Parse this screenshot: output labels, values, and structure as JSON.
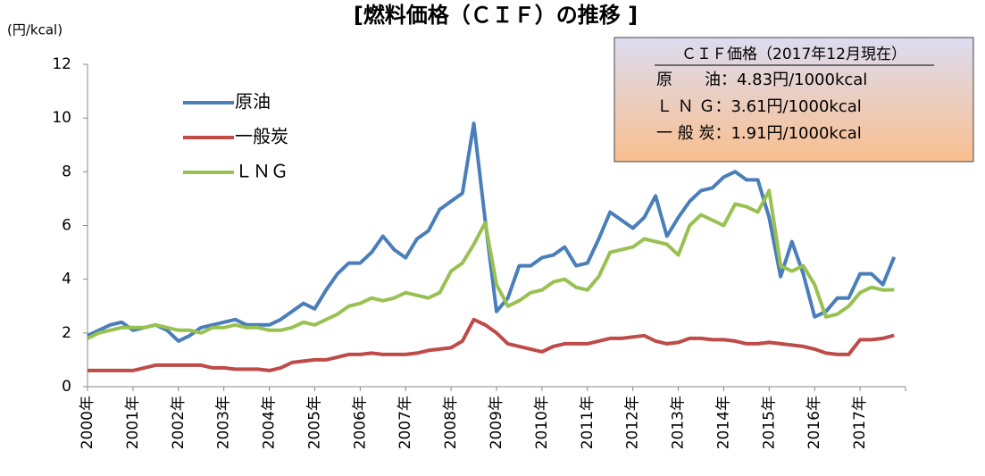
{
  "chart_data": {
    "type": "line",
    "title": "[燃料価格（ＣＩＦ）の推移 ]",
    "y_label": "(円/kcal)",
    "annotations": [
      "ＣＩＦ価格（2017年12月現在）",
      "原　　油：4.83円/1000kcal",
      "Ｌ Ｎ Ｇ：3.61円/1000kcal",
      "一 般 炭：1.91円/1000kcal"
    ],
    "categories": [
      "2000年",
      null,
      null,
      null,
      "2001年",
      null,
      null,
      null,
      "2002年",
      null,
      null,
      null,
      "2003年",
      null,
      null,
      null,
      "2004年",
      null,
      null,
      null,
      "2005年",
      null,
      null,
      null,
      "2006年",
      null,
      null,
      null,
      "2007年",
      null,
      null,
      null,
      "2008年",
      null,
      null,
      null,
      "2009年",
      null,
      null,
      null,
      "2010年",
      null,
      null,
      null,
      "2011年",
      null,
      null,
      null,
      "2012年",
      null,
      null,
      null,
      "2013年",
      null,
      null,
      null,
      "2014年",
      null,
      null,
      null,
      "2015年",
      null,
      null,
      null,
      "2016年",
      null,
      null,
      null,
      "2017年",
      null,
      null,
      null
    ],
    "ylim": [
      0,
      12
    ],
    "yticks": [
      0,
      2,
      4,
      6,
      8,
      10,
      12
    ],
    "legend": "upper left",
    "series": [
      {
        "name": "原油",
        "color": "#4a7ebb",
        "values": [
          1.9,
          2.1,
          2.3,
          2.4,
          2.1,
          2.2,
          2.3,
          2.1,
          1.7,
          1.9,
          2.2,
          2.3,
          2.4,
          2.5,
          2.3,
          2.3,
          2.3,
          2.5,
          2.8,
          3.1,
          2.9,
          3.6,
          4.2,
          4.6,
          4.6,
          5.0,
          5.6,
          5.1,
          4.8,
          5.5,
          5.8,
          6.6,
          6.9,
          7.2,
          9.8,
          6.2,
          2.8,
          3.3,
          4.5,
          4.5,
          4.8,
          4.9,
          5.2,
          4.5,
          4.6,
          5.5,
          6.5,
          6.2,
          5.9,
          6.3,
          7.1,
          5.6,
          6.3,
          6.9,
          7.3,
          7.4,
          7.8,
          8.0,
          7.7,
          7.7,
          6.3,
          4.1,
          5.4,
          4.2,
          2.6,
          2.8,
          3.3,
          3.3,
          4.2,
          4.2,
          3.8,
          4.83
        ]
      },
      {
        "name": "一般炭",
        "color": "#be4b48",
        "values": [
          0.6,
          0.6,
          0.6,
          0.6,
          0.6,
          0.7,
          0.8,
          0.8,
          0.8,
          0.8,
          0.8,
          0.7,
          0.7,
          0.65,
          0.65,
          0.65,
          0.6,
          0.7,
          0.9,
          0.95,
          1.0,
          1.0,
          1.1,
          1.2,
          1.2,
          1.25,
          1.2,
          1.2,
          1.2,
          1.25,
          1.35,
          1.4,
          1.45,
          1.7,
          2.5,
          2.3,
          2.0,
          1.6,
          1.5,
          1.4,
          1.3,
          1.5,
          1.6,
          1.6,
          1.6,
          1.7,
          1.8,
          1.8,
          1.85,
          1.9,
          1.7,
          1.6,
          1.65,
          1.8,
          1.8,
          1.75,
          1.75,
          1.7,
          1.6,
          1.6,
          1.65,
          1.6,
          1.55,
          1.5,
          1.4,
          1.25,
          1.2,
          1.2,
          1.75,
          1.75,
          1.8,
          1.91
        ]
      },
      {
        "name": "ＬＮＧ",
        "color": "#98c151",
        "values": [
          1.8,
          2.0,
          2.1,
          2.2,
          2.2,
          2.2,
          2.3,
          2.2,
          2.1,
          2.1,
          2.0,
          2.2,
          2.2,
          2.3,
          2.2,
          2.2,
          2.1,
          2.1,
          2.2,
          2.4,
          2.3,
          2.5,
          2.7,
          3.0,
          3.1,
          3.3,
          3.2,
          3.3,
          3.5,
          3.4,
          3.3,
          3.5,
          4.3,
          4.6,
          5.3,
          6.1,
          3.8,
          3.0,
          3.2,
          3.5,
          3.6,
          3.9,
          4.0,
          3.7,
          3.6,
          4.1,
          5.0,
          5.1,
          5.2,
          5.5,
          5.4,
          5.3,
          4.9,
          6.0,
          6.4,
          6.2,
          6.0,
          6.8,
          6.7,
          6.5,
          7.3,
          4.5,
          4.3,
          4.5,
          3.8,
          2.6,
          2.7,
          3.0,
          3.5,
          3.7,
          3.6,
          3.61
        ]
      }
    ]
  }
}
